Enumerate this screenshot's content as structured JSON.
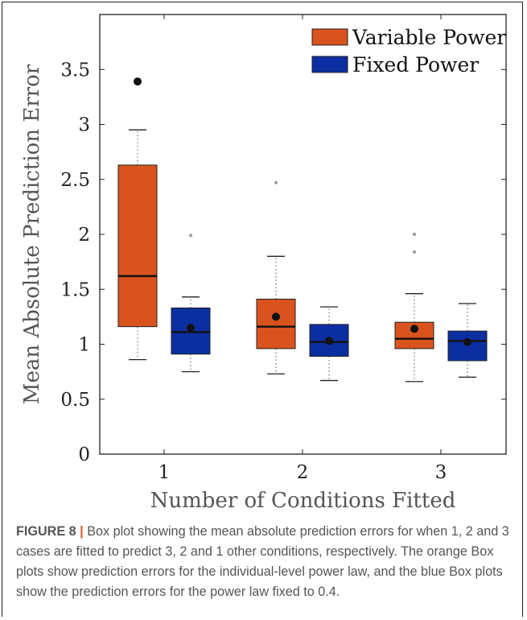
{
  "chart_data": {
    "type": "box",
    "ylabel": "Mean Absolute Prediction Error",
    "xlabel": "Number of Conditions Fitted",
    "categories": [
      "1",
      "2",
      "3"
    ],
    "ylim": [
      0,
      4.0
    ],
    "yticks": [
      0,
      0.5,
      1,
      1.5,
      2,
      2.5,
      3,
      3.5
    ],
    "ytick_labels": [
      "0",
      "0.5",
      "1",
      "1.5",
      "2",
      "2.5",
      "3",
      "3.5"
    ],
    "legend_position": "top-right",
    "series": [
      {
        "name": "Variable Power",
        "color": "#d9531e",
        "boxes": [
          {
            "whisker_low": 0.86,
            "q1": 1.16,
            "median": 1.62,
            "q3": 2.63,
            "whisker_high": 2.95,
            "mean": 3.39,
            "outliers": []
          },
          {
            "whisker_low": 0.73,
            "q1": 0.96,
            "median": 1.16,
            "q3": 1.41,
            "whisker_high": 1.8,
            "mean": 1.25,
            "outliers": [
              2.47
            ]
          },
          {
            "whisker_low": 0.66,
            "q1": 0.96,
            "median": 1.05,
            "q3": 1.2,
            "whisker_high": 1.46,
            "mean": 1.14,
            "outliers": [
              1.84,
              2.0
            ]
          }
        ]
      },
      {
        "name": "Fixed Power",
        "color": "#0b2fa0",
        "boxes": [
          {
            "whisker_low": 0.75,
            "q1": 0.91,
            "median": 1.11,
            "q3": 1.33,
            "whisker_high": 1.43,
            "mean": 1.15,
            "outliers": [
              1.99
            ]
          },
          {
            "whisker_low": 0.67,
            "q1": 0.89,
            "median": 1.02,
            "q3": 1.18,
            "whisker_high": 1.34,
            "mean": 1.03,
            "outliers": []
          },
          {
            "whisker_low": 0.7,
            "q1": 0.85,
            "median": 1.03,
            "q3": 1.12,
            "whisker_high": 1.37,
            "mean": 1.02,
            "outliers": []
          }
        ]
      }
    ]
  },
  "caption": {
    "label": "FIGURE 8",
    "separator": " | ",
    "text": "Box plot showing the mean absolute prediction errors for when 1, 2 and 3 cases are fitted to predict 3, 2 and 1 other conditions, respectively. The orange Box plots show prediction errors for the individual-level power law, and the blue Box plots show the prediction errors for the power law fixed to 0.4."
  }
}
